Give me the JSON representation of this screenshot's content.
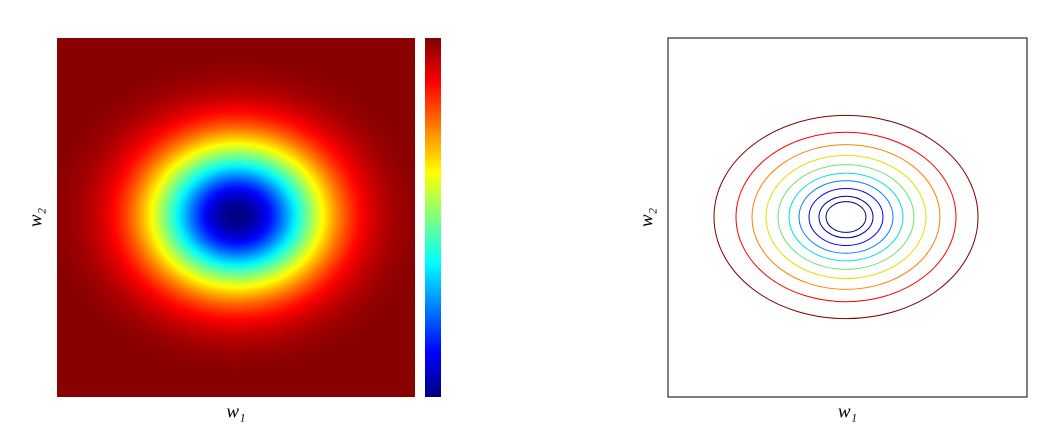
{
  "chart_data": [
    {
      "type": "heatmap",
      "xlabel": "w₁",
      "ylabel": "w₂",
      "colormap": "jet",
      "colorbar": true
    },
    {
      "type": "contour",
      "xlabel": "w₁",
      "ylabel": "w₂",
      "colors": [
        "#00007f",
        "#00009f",
        "#0000ff",
        "#0080ff",
        "#00e0e0",
        "#70e070",
        "#e0e000",
        "#ff8000",
        "#ff0000",
        "#7f0000"
      ]
    }
  ]
}
